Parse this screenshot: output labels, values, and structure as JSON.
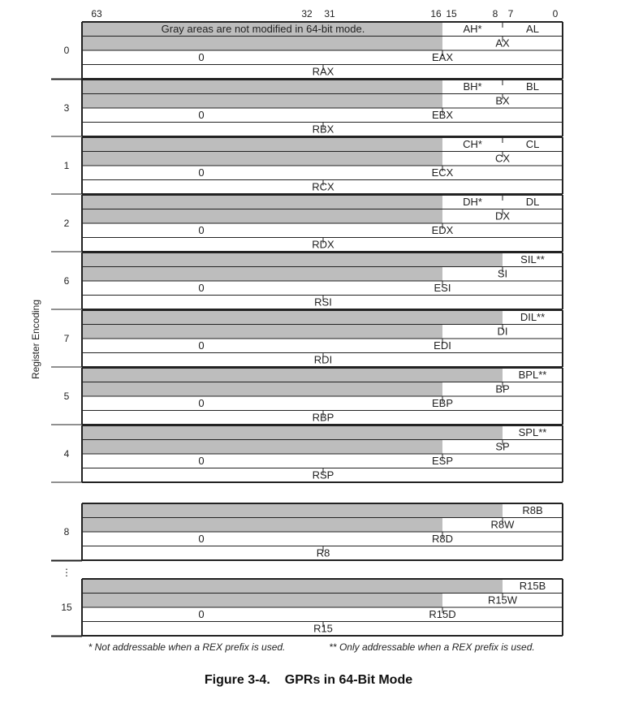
{
  "bit_numbers": [
    "63",
    "32",
    "31",
    "16",
    "15",
    "8",
    "7",
    "0"
  ],
  "gray_note": "Gray areas are not modified in 64-bit mode.",
  "axis_label": "Register Encoding",
  "ellipsis": "⋮",
  "registers": [
    {
      "enc": "0",
      "q": "RAX",
      "d": "EAX",
      "w": "AX",
      "h": "AH*",
      "l": "AL",
      "fill": "0",
      "layout": "legacy-hl"
    },
    {
      "enc": "3",
      "q": "RBX",
      "d": "EBX",
      "w": "BX",
      "h": "BH*",
      "l": "BL",
      "fill": "0",
      "layout": "legacy-hl"
    },
    {
      "enc": "1",
      "q": "RCX",
      "d": "ECX",
      "w": "CX",
      "h": "CH*",
      "l": "CL",
      "fill": "0",
      "layout": "legacy-hl"
    },
    {
      "enc": "2",
      "q": "RDX",
      "d": "EDX",
      "w": "DX",
      "h": "DH*",
      "l": "DL",
      "fill": "0",
      "layout": "legacy-hl"
    },
    {
      "enc": "6",
      "q": "RSI",
      "d": "ESI",
      "w": "SI",
      "l": "SIL**",
      "fill": "0",
      "layout": "legacy-l"
    },
    {
      "enc": "7",
      "q": "RDI",
      "d": "EDI",
      "w": "DI",
      "l": "DIL**",
      "fill": "0",
      "layout": "legacy-l"
    },
    {
      "enc": "5",
      "q": "RBP",
      "d": "EBP",
      "w": "BP",
      "l": "BPL**",
      "fill": "0",
      "layout": "legacy-l"
    },
    {
      "enc": "4",
      "q": "RSP",
      "d": "ESP",
      "w": "SP",
      "l": "SPL**",
      "fill": "0",
      "layout": "legacy-l"
    },
    {
      "enc": "8",
      "q": "R8",
      "d": "R8D",
      "w": "R8W",
      "l": "R8B",
      "fill": "0",
      "layout": "rex"
    },
    {
      "enc": "15",
      "q": "R15",
      "d": "R15D",
      "w": "R15W",
      "l": "R15B",
      "fill": "0",
      "layout": "rex"
    }
  ],
  "footnotes": {
    "star": "* Not addressable when a REX prefix is used.",
    "double_star": "** Only addressable when a REX prefix is used."
  },
  "caption": {
    "number": "Figure 3-4.",
    "title": "GPRs in 64-Bit Mode"
  },
  "colors": {
    "gray_fill": "#bdbdbd",
    "line": "#222222",
    "background": "#ffffff"
  }
}
